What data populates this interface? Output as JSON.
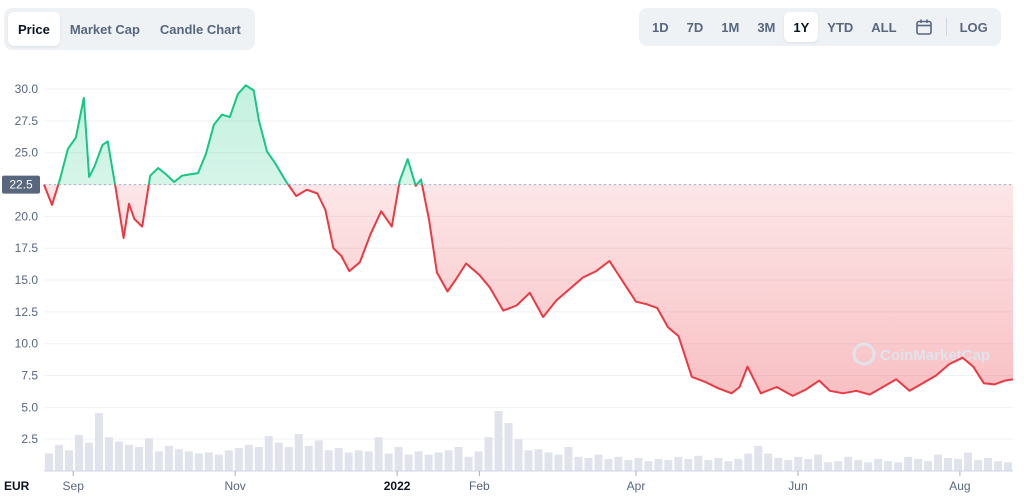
{
  "tabs": [
    {
      "label": "Price",
      "active": true
    },
    {
      "label": "Market Cap",
      "active": false
    },
    {
      "label": "Candle Chart",
      "active": false
    }
  ],
  "ranges": [
    {
      "label": "1D",
      "active": false
    },
    {
      "label": "7D",
      "active": false
    },
    {
      "label": "1M",
      "active": false
    },
    {
      "label": "3M",
      "active": false
    },
    {
      "label": "1Y",
      "active": true
    },
    {
      "label": "YTD",
      "active": false
    },
    {
      "label": "ALL",
      "active": false
    }
  ],
  "calendar_icon": "calendar-icon",
  "log_label": "LOG",
  "watermark": "CoinMarketCap",
  "currency_label": "EUR",
  "chart_data": {
    "type": "line",
    "title": "",
    "xlabel": "",
    "ylabel": "",
    "ylim": [
      0,
      31.5
    ],
    "y_ticks": [
      "2.5",
      "5.0",
      "7.5",
      "10.0",
      "12.5",
      "15.0",
      "17.5",
      "20.0",
      "22.5",
      "25.0",
      "27.5",
      "30.0"
    ],
    "baseline_value": 22.5,
    "baseline_label": "22.5",
    "x_range": [
      "2021-08-21",
      "2022-08-21"
    ],
    "x_ticks": [
      {
        "label": "Sep",
        "date": "2021-09-01",
        "bold": false
      },
      {
        "label": "Nov",
        "date": "2021-11-01",
        "bold": false
      },
      {
        "label": "2022",
        "date": "2022-01-01",
        "bold": true
      },
      {
        "label": "Feb",
        "date": "2022-02-01",
        "bold": false
      },
      {
        "label": "Apr",
        "date": "2022-04-01",
        "bold": false
      },
      {
        "label": "Jun",
        "date": "2022-06-01",
        "bold": false
      },
      {
        "label": "Aug",
        "date": "2022-08-01",
        "bold": false
      }
    ],
    "colors": {
      "above": "#16c784",
      "below": "#ea3943",
      "grid": "#eff2f5",
      "volume": "#e0e3eb",
      "baseline": "#a6b0c3"
    },
    "grid": true,
    "series": [
      {
        "x": [
          "2021-08-21",
          "2021-08-24",
          "2021-08-27",
          "2021-08-30",
          "2021-09-02",
          "2021-09-05",
          "2021-09-07",
          "2021-09-09",
          "2021-09-12",
          "2021-09-14",
          "2021-09-17",
          "2021-09-20",
          "2021-09-22",
          "2021-09-24",
          "2021-09-27",
          "2021-09-30",
          "2021-10-03",
          "2021-10-06",
          "2021-10-09",
          "2021-10-12",
          "2021-10-15",
          "2021-10-18",
          "2021-10-21",
          "2021-10-24",
          "2021-10-27",
          "2021-10-30",
          "2021-11-02",
          "2021-11-05",
          "2021-11-08",
          "2021-11-10",
          "2021-11-13",
          "2021-11-16",
          "2021-11-20",
          "2021-11-24",
          "2021-11-28",
          "2021-12-02",
          "2021-12-05",
          "2021-12-08",
          "2021-12-11",
          "2021-12-14",
          "2021-12-18",
          "2021-12-22",
          "2021-12-26",
          "2021-12-30",
          "2022-01-02",
          "2022-01-05",
          "2022-01-08",
          "2022-01-10",
          "2022-01-13",
          "2022-01-16",
          "2022-01-20",
          "2022-01-23",
          "2022-01-27",
          "2022-02-01",
          "2022-02-05",
          "2022-02-10",
          "2022-02-15",
          "2022-02-20",
          "2022-02-25",
          "2022-03-02",
          "2022-03-07",
          "2022-03-12",
          "2022-03-17",
          "2022-03-22",
          "2022-03-27",
          "2022-04-01",
          "2022-04-05",
          "2022-04-09",
          "2022-04-13",
          "2022-04-17",
          "2022-04-22",
          "2022-04-27",
          "2022-05-02",
          "2022-05-07",
          "2022-05-10",
          "2022-05-13",
          "2022-05-18",
          "2022-05-24",
          "2022-05-30",
          "2022-06-04",
          "2022-06-09",
          "2022-06-13",
          "2022-06-18",
          "2022-06-23",
          "2022-06-28",
          "2022-07-03",
          "2022-07-08",
          "2022-07-13",
          "2022-07-18",
          "2022-07-23",
          "2022-07-28",
          "2022-08-02",
          "2022-08-06",
          "2022-08-10",
          "2022-08-14",
          "2022-08-18",
          "2022-08-21"
        ],
        "y": [
          22.5,
          20.9,
          22.9,
          25.3,
          26.2,
          29.3,
          23.1,
          23.9,
          25.6,
          25.9,
          22.2,
          18.3,
          21.0,
          19.8,
          19.2,
          23.2,
          23.8,
          23.3,
          22.7,
          23.2,
          23.3,
          23.4,
          24.9,
          27.2,
          28.0,
          27.8,
          29.6,
          30.3,
          29.9,
          27.5,
          25.1,
          24.2,
          22.8,
          21.6,
          22.1,
          21.8,
          20.5,
          17.5,
          16.9,
          15.7,
          16.4,
          18.6,
          20.4,
          19.2,
          22.8,
          24.5,
          22.4,
          22.9,
          19.8,
          15.6,
          14.1,
          15.0,
          16.3,
          15.4,
          14.4,
          12.6,
          13.0,
          14.0,
          12.1,
          13.4,
          14.3,
          15.2,
          15.7,
          16.5,
          14.9,
          13.3,
          13.1,
          12.8,
          11.3,
          10.6,
          7.4,
          7.0,
          6.5,
          6.1,
          6.6,
          8.2,
          6.1,
          6.6,
          5.9,
          6.4,
          7.1,
          6.3,
          6.1,
          6.3,
          6.0,
          6.6,
          7.2,
          6.3,
          6.9,
          7.5,
          8.4,
          8.9,
          8.2,
          6.9,
          6.8,
          7.1,
          7.2
        ]
      }
    ],
    "volume": [
      1.6,
      2.4,
      1.9,
      3.3,
      2.6,
      5.3,
      3.1,
      2.7,
      2.4,
      2.2,
      3.0,
      1.8,
      2.3,
      2.0,
      1.8,
      1.6,
      1.7,
      1.5,
      1.9,
      2.1,
      2.4,
      2.2,
      3.2,
      2.6,
      2.2,
      3.4,
      2.3,
      2.8,
      1.9,
      2.1,
      1.7,
      1.9,
      1.8,
      3.1,
      1.6,
      2.2,
      1.5,
      1.8,
      1.5,
      1.7,
      1.9,
      2.2,
      1.3,
      1.8,
      3.1,
      5.5,
      4.4,
      2.9,
      1.9,
      2.0,
      1.7,
      1.5,
      2.2,
      1.3,
      1.2,
      1.5,
      1.1,
      1.3,
      1.0,
      1.2,
      0.9,
      1.1,
      1.0,
      1.3,
      1.1,
      1.4,
      1.0,
      1.2,
      0.9,
      1.1,
      1.6,
      2.3,
      1.6,
      1.2,
      1.0,
      1.3,
      1.1,
      1.5,
      0.8,
      0.9,
      1.3,
      1.0,
      0.8,
      1.1,
      0.9,
      0.8,
      1.3,
      1.1,
      0.9,
      1.5,
      1.2,
      1.1,
      1.7,
      1.0,
      1.2,
      0.9,
      0.8
    ]
  }
}
